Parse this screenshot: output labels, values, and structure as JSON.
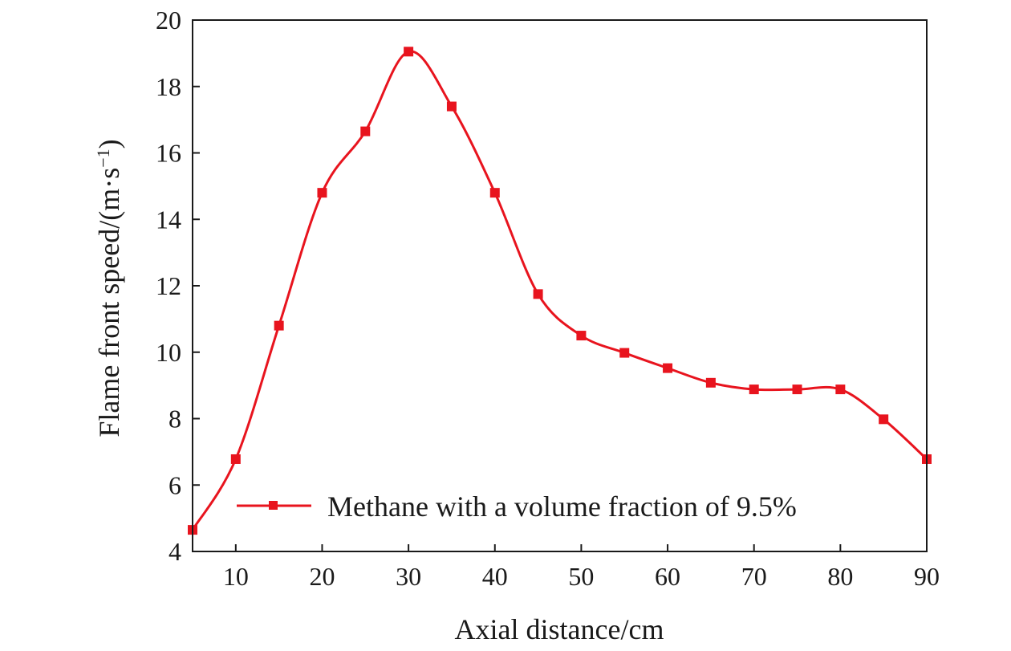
{
  "chart_data": {
    "type": "line",
    "xlabel": "Axial distance/cm",
    "ylabel": "Flame front speed/(m·s",
    "ylabel_sup": "−1",
    "ylabel_close": ")",
    "xlim": [
      5,
      90
    ],
    "ylim": [
      4,
      20
    ],
    "xticks": [
      "10",
      "20",
      "30",
      "40",
      "50",
      "60",
      "70",
      "80",
      "90"
    ],
    "yticks": [
      "4",
      "6",
      "8",
      "10",
      "12",
      "14",
      "16",
      "18",
      "20"
    ],
    "grid": false,
    "legend_placement": "bottom",
    "series": [
      {
        "name": "Methane with a volume fraction of 9.5%",
        "color": "#e8141e",
        "marker": "square",
        "x": [
          5,
          10,
          15,
          20,
          25,
          30,
          35,
          40,
          45,
          50,
          55,
          60,
          65,
          70,
          75,
          80,
          85,
          90
        ],
        "y": [
          4.65,
          6.78,
          10.8,
          14.8,
          16.65,
          19.05,
          17.4,
          14.8,
          11.75,
          10.5,
          9.98,
          9.52,
          9.08,
          8.88,
          8.88,
          8.88,
          7.98,
          6.78
        ]
      }
    ]
  }
}
